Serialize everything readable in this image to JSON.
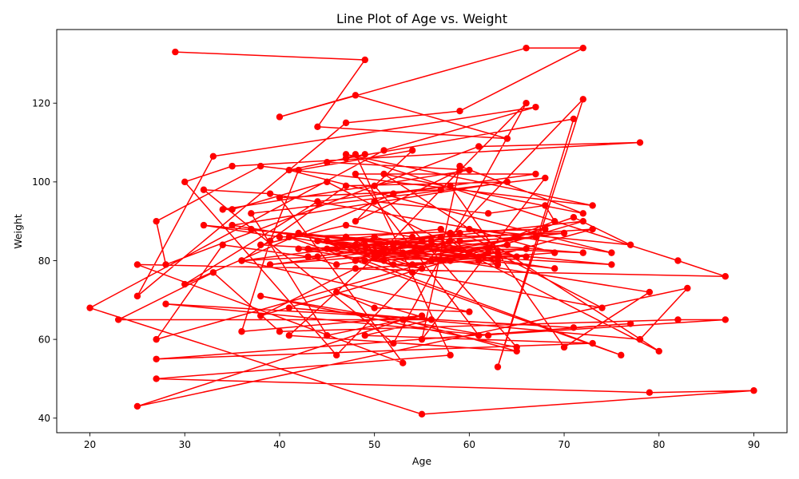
{
  "chart_data": {
    "type": "line",
    "title": "Line Plot of Age vs. Weight",
    "xlabel": "Age",
    "ylabel": "Weight",
    "xlim": [
      16.5,
      93.5
    ],
    "ylim": [
      36.3,
      138.7
    ],
    "xticks": [
      20,
      30,
      40,
      50,
      60,
      70,
      80,
      90
    ],
    "yticks": [
      40,
      60,
      80,
      100,
      120
    ],
    "grid": false,
    "legend": "none",
    "color": "#ff0000",
    "marker": "circle",
    "series": [
      {
        "x": [
          29,
          49,
          44,
          64,
          48,
          40,
          66,
          72,
          59,
          47,
          25,
          33,
          67,
          51,
          20,
          55,
          90,
          79,
          27,
          58,
          48,
          47,
          71,
          63,
          72,
          46,
          30,
          35,
          78,
          61,
          28,
          27,
          38,
          73,
          47,
          82,
          87,
          25,
          53,
          40,
          57,
          66,
          52,
          32,
          39,
          75,
          41,
          49,
          45,
          60,
          34,
          35,
          45,
          80,
          51,
          72,
          59,
          55,
          68,
          37,
          45,
          55,
          36,
          39,
          42,
          54,
          50,
          65,
          38,
          62,
          28,
          71,
          77,
          27,
          73,
          49,
          56,
          23,
          33,
          40,
          82,
          87,
          61,
          48,
          67,
          52,
          30,
          44,
          58,
          70,
          79,
          35,
          64,
          47,
          36,
          60,
          50,
          46,
          56,
          41,
          78,
          83,
          25,
          53,
          65,
          41,
          51,
          59,
          48,
          50,
          62,
          68,
          69,
          60,
          57,
          45,
          55,
          42,
          63,
          54,
          47,
          38,
          75,
          32,
          40,
          68,
          27,
          34,
          43,
          65,
          71,
          77,
          60,
          69,
          52,
          49,
          36,
          44,
          58,
          46,
          57,
          72,
          38,
          48,
          61,
          73,
          55,
          50,
          66,
          42,
          54,
          74,
          62,
          47,
          56,
          39,
          64,
          51,
          45,
          70,
          53,
          59,
          67,
          46,
          43,
          52,
          37,
          60,
          58,
          49,
          76,
          41,
          56,
          63,
          48,
          50,
          55,
          69,
          44,
          57,
          62,
          61,
          53,
          47,
          54,
          66,
          51,
          59,
          65,
          48,
          52,
          72,
          56,
          45,
          50,
          58,
          60,
          63,
          43,
          55
        ],
        "y": [
          133,
          131,
          114,
          111,
          122,
          116.5,
          134,
          134,
          118,
          115,
          71,
          106.5,
          119,
          108,
          68,
          41,
          47,
          46.5,
          50,
          56,
          107,
          106,
          116,
          53,
          121,
          56,
          100,
          104,
          110,
          109,
          79,
          90,
          104,
          94,
          107,
          80,
          76,
          79,
          54,
          96,
          98,
          120,
          59,
          98,
          97,
          82,
          103,
          107,
          105,
          103,
          93,
          93,
          100,
          57,
          102,
          92,
          104,
          60,
          101,
          92,
          61,
          66,
          62,
          85,
          103,
          108,
          99,
          58,
          71,
          61,
          69,
          63,
          64,
          55,
          59,
          61,
          65,
          65,
          77,
          62,
          65,
          65,
          61,
          102,
          102,
          97,
          74,
          95,
          99,
          58,
          72,
          89,
          100,
          99,
          80,
          67,
          68,
          72,
          65,
          68,
          60,
          73,
          43,
          65,
          57,
          61,
          83,
          103,
          90,
          95,
          92,
          94,
          90,
          82,
          88,
          85,
          78,
          83,
          80,
          86,
          89,
          84,
          79,
          89,
          86,
          88,
          60,
          84,
          81,
          86,
          91,
          84,
          88,
          82,
          79,
          84,
          80,
          81,
          87,
          83,
          86,
          90,
          66,
          78,
          80,
          88,
          85,
          82,
          81,
          87,
          77,
          68,
          83,
          86,
          84,
          79,
          84,
          80,
          85,
          87,
          82,
          85,
          86,
          79,
          81,
          83,
          88,
          82,
          85,
          80,
          56,
          86,
          80,
          82,
          84,
          86,
          83,
          78,
          85,
          80,
          82,
          81,
          84,
          86,
          79,
          83,
          82,
          87,
          81,
          80,
          84,
          82,
          85,
          83,
          81,
          80,
          82,
          79,
          83,
          85
        ]
      }
    ]
  }
}
